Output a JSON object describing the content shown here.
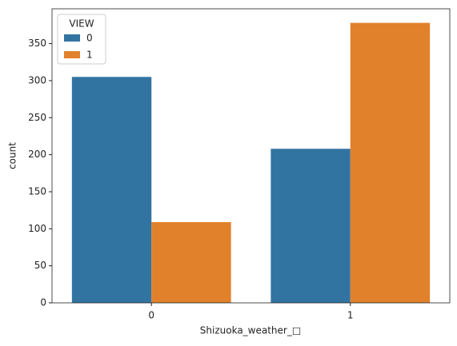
{
  "chart_data": {
    "type": "bar",
    "x_label": "Shizuoka_weather_□",
    "y_label": "count",
    "categories": [
      "0",
      "1"
    ],
    "series": [
      {
        "name": "0",
        "color": "#3274a1",
        "values": [
          305,
          208
        ]
      },
      {
        "name": "1",
        "color": "#e1812c",
        "values": [
          109,
          378
        ]
      }
    ],
    "legend_title": "VIEW",
    "legend": "upper left",
    "ylim": [
      0,
      397
    ],
    "yticks": [
      0,
      50,
      100,
      150,
      200,
      250,
      300,
      350
    ]
  }
}
